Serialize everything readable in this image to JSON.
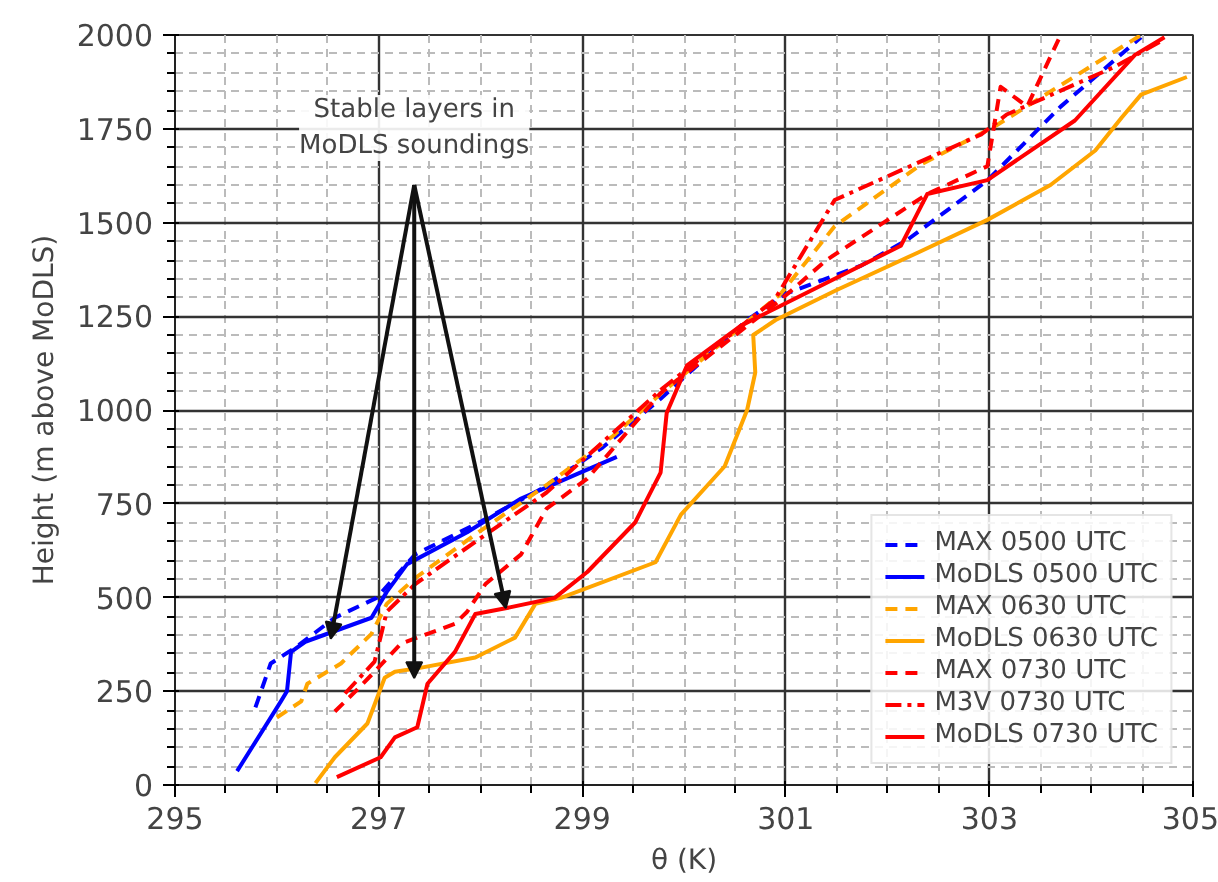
{
  "chart_data": {
    "type": "line",
    "xlabel": "θ (K)",
    "ylabel": "Height (m above MoDLS)",
    "xlim": [
      295,
      305
    ],
    "ylim": [
      0,
      2000
    ],
    "xticks": [
      295,
      297,
      299,
      301,
      303,
      305
    ],
    "yticks": [
      0,
      250,
      500,
      750,
      1000,
      1250,
      1500,
      1750,
      2000
    ],
    "grid": true,
    "legend": "bottom right",
    "annotations": [
      "Stable layers in\nMoDLS soundings"
    ],
    "series": [
      {
        "name": "MAX 0500 UTC",
        "color": "#0000ff",
        "line_style": "dashed",
        "x": [
          295.79,
          295.94,
          296.18,
          296.57,
          296.98,
          297.36,
          297.95,
          298.6,
          299.2,
          299.77,
          300.62,
          301.0,
          301.74,
          302.19,
          302.98,
          303.7,
          304.49
        ],
        "values": [
          207,
          324,
          366,
          446,
          499,
          615,
          695,
          790,
          900,
          1030,
          1240,
          1310,
          1385,
          1453,
          1612,
          1809,
          1994
        ]
      },
      {
        "name": "MoDLS 0500 UTC",
        "color": "#0000ff",
        "line_style": "solid",
        "x": [
          295.61,
          296.04,
          296.1,
          296.14,
          296.28,
          296.93,
          297.08,
          297.28,
          297.87,
          298.4,
          298.93,
          299.34
        ],
        "values": [
          37,
          223,
          250,
          355,
          382,
          446,
          515,
          589,
          674,
          764,
          827,
          875
        ]
      },
      {
        "name": "MAX 0630 UTC",
        "color": "#ffa500",
        "line_style": "dashed",
        "x": [
          296.0,
          296.24,
          296.3,
          296.63,
          296.93,
          297.08,
          297.36,
          297.95,
          298.65,
          299.3,
          299.8,
          300.95,
          301.48,
          302.33,
          303.05,
          304.49
        ],
        "values": [
          180,
          223,
          270,
          324,
          403,
          483,
          552,
          668,
          800,
          930,
          1050,
          1310,
          1490,
          1655,
          1756,
          2000
        ]
      },
      {
        "name": "MoDLS 0630 UTC",
        "color": "#ffa500",
        "line_style": "solid",
        "x": [
          296.38,
          296.57,
          296.89,
          297.06,
          297.16,
          297.42,
          297.95,
          298.34,
          298.54,
          298.79,
          299.72,
          299.97,
          300.4,
          300.62,
          300.7,
          300.68,
          300.9,
          301.5,
          302.3,
          302.98,
          303.6,
          304.04,
          304.3,
          304.49,
          304.94
        ],
        "values": [
          5,
          74,
          164,
          286,
          302,
          313,
          340,
          393,
          483,
          499,
          594,
          721,
          850,
          1000,
          1100,
          1200,
          1240,
          1320,
          1420,
          1507,
          1600,
          1692,
          1780,
          1841,
          1888
        ]
      },
      {
        "name": "MAX 0730 UTC",
        "color": "#ff0000",
        "line_style": "dashed",
        "x": [
          296.57,
          296.77,
          296.96,
          297.22,
          297.75,
          297.87,
          298.05,
          298.4,
          298.65,
          299.05,
          299.77,
          300.95,
          301.4,
          302.39,
          302.98,
          303.11,
          303.37,
          303.7
        ],
        "values": [
          196,
          249,
          302,
          377,
          430,
          462,
          536,
          615,
          737,
          817,
          1045,
          1294,
          1400,
          1576,
          1650,
          1862,
          1809,
          2000
        ]
      },
      {
        "name": "M3V 0730 UTC",
        "color": "#ff0000",
        "line_style": "dashdot",
        "x": [
          296.67,
          296.96,
          297.08,
          297.36,
          298.0,
          298.65,
          299.8,
          300.89,
          301.48,
          302.92,
          303.17,
          304.23,
          304.69
        ],
        "values": [
          244,
          329,
          462,
          536,
          658,
          780,
          1060,
          1294,
          1560,
          1735,
          1788,
          1915,
          1984
        ]
      },
      {
        "name": "MoDLS 0730 UTC",
        "color": "#ff0000",
        "line_style": "solid",
        "x": [
          296.59,
          297.02,
          297.16,
          297.38,
          297.48,
          297.75,
          297.95,
          298.26,
          298.73,
          299.05,
          299.52,
          299.77,
          299.83,
          300.03,
          300.56,
          300.95,
          302.13,
          302.29,
          302.39,
          302.98,
          303.84,
          304.43,
          304.72
        ],
        "values": [
          21,
          74,
          127,
          154,
          270,
          355,
          456,
          472,
          499,
          568,
          700,
          833,
          992,
          1119,
          1225,
          1278,
          1438,
          1523,
          1576,
          1613,
          1772,
          1947,
          1994
        ]
      }
    ]
  }
}
